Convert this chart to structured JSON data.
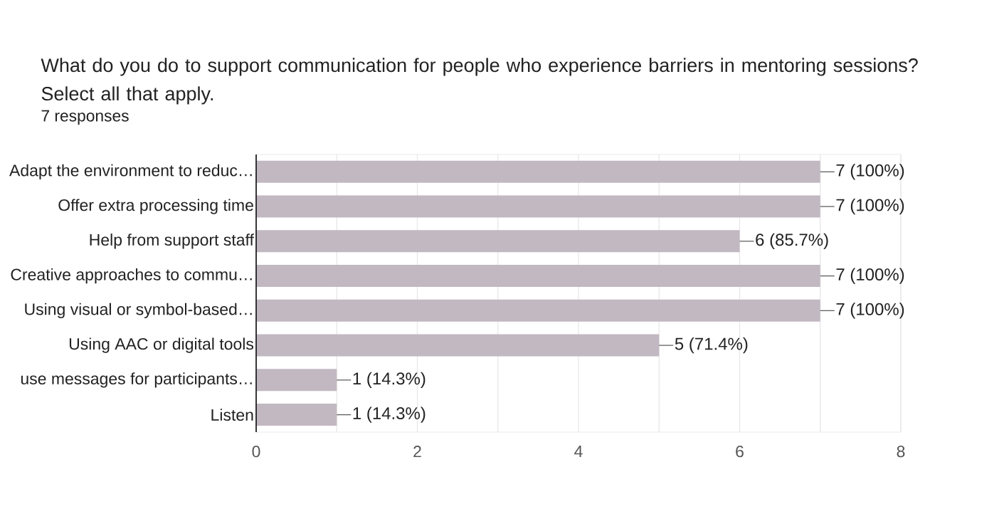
{
  "chart_data": {
    "type": "bar",
    "orientation": "horizontal",
    "title": "What do you do to support communication for people who experience barriers in mentoring sessions? Select all that apply.",
    "subtitle": "7 responses",
    "categories": [
      "Adapt the environment to reduc…",
      "Offer extra processing time",
      "Help from support staff",
      "Creative approaches to commu…",
      "Using visual or symbol-based…",
      "Using AAC or digital tools",
      "use messages for participants…",
      "Listen"
    ],
    "values": [
      7,
      7,
      6,
      7,
      7,
      5,
      1,
      1
    ],
    "value_labels": [
      "7 (100%)",
      "7 (100%)",
      "6 (85.7%)",
      "7 (100%)",
      "7 (100%)",
      "5 (71.4%)",
      "1 (14.3%)",
      "1 (14.3%)"
    ],
    "color": "#c2b8c2",
    "xlim": [
      0,
      8
    ],
    "xticks": [
      0,
      {
        "value": 1,
        "label": null
      },
      2,
      {
        "value": 3,
        "label": null
      },
      4,
      {
        "value": 5,
        "label": null
      },
      6,
      {
        "value": 7,
        "label": null
      },
      8
    ],
    "grid": "x"
  }
}
